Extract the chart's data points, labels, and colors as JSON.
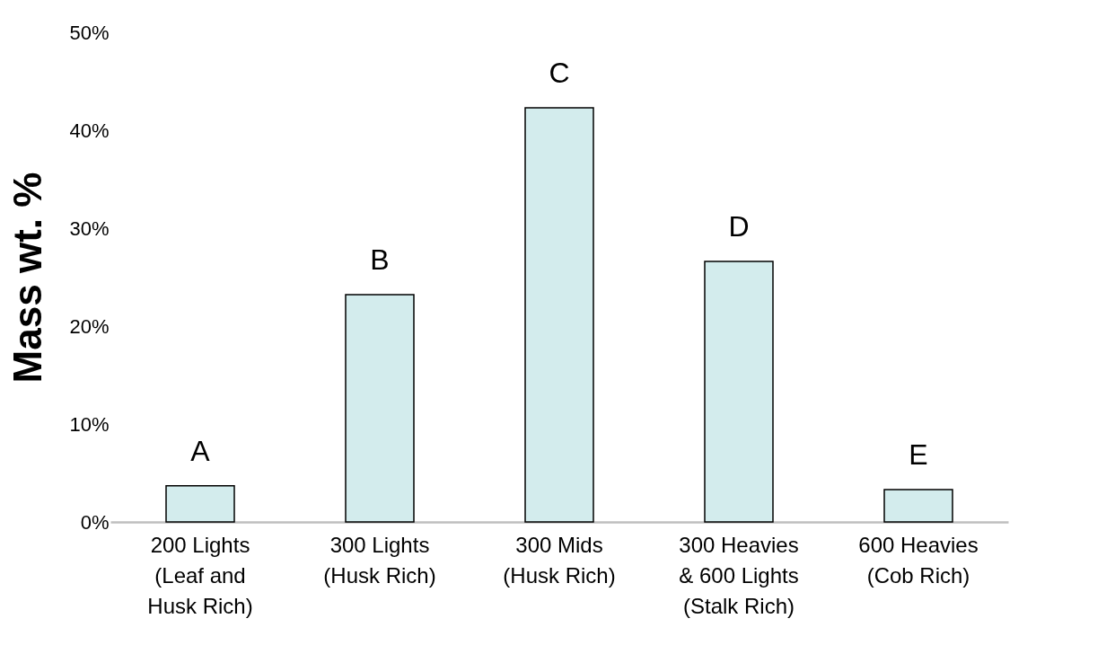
{
  "chart_data": {
    "type": "bar",
    "ylabel": "Mass wt. %",
    "categories": [
      "200 Lights\n(Leaf and\nHusk Rich)",
      "300 Lights\n(Husk Rich)",
      "300 Mids\n(Husk Rich)",
      "300 Heavies\n& 600 Lights\n(Stalk Rich)",
      "600 Heavies\n(Cob Rich)"
    ],
    "values": [
      3.7,
      23.2,
      42.3,
      26.6,
      3.3
    ],
    "color": "#d3eced",
    "ylim": [
      0,
      50
    ],
    "yticks": [
      {
        "value": 0,
        "label": "0%"
      },
      {
        "value": 10,
        "label": "10%"
      },
      {
        "value": 20,
        "label": "20%"
      },
      {
        "value": 30,
        "label": "30%"
      },
      {
        "value": 40,
        "label": "40%"
      },
      {
        "value": 50,
        "label": "50%"
      }
    ],
    "grid": false,
    "annotations": [
      {
        "text": "A",
        "x": "200 Lights\n(Leaf and\nHusk Rich)",
        "y": 3.7
      },
      {
        "text": "B",
        "x": "300 Lights\n(Husk Rich)",
        "y": 23.2
      },
      {
        "text": "C",
        "x": "300 Mids\n(Husk Rich)",
        "y": 42.3
      },
      {
        "text": "D",
        "x": "300 Heavies\n& 600 Lights\n(Stalk Rich)",
        "y": 26.6
      },
      {
        "text": "E",
        "x": "600 Heavies\n(Cob Rich)",
        "y": 3.3
      }
    ]
  }
}
